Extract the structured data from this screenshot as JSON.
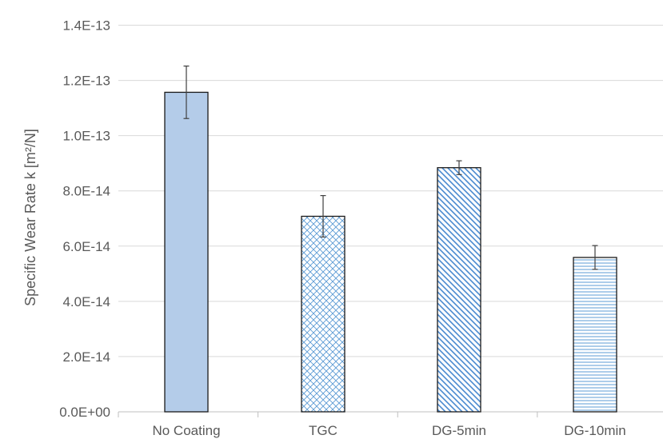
{
  "chart_data": {
    "type": "bar",
    "title": "",
    "xlabel": "",
    "ylabel": "Specific Wear Rate k [m²/N]",
    "categories": [
      "No Coating",
      "TGC",
      "DG-5min",
      "DG-10min"
    ],
    "values": [
      1.157e-13,
      7.08e-14,
      8.84e-14,
      5.59e-14
    ],
    "error_bars": [
      9.5e-15,
      7.5e-15,
      2.5e-15,
      4.3e-15
    ],
    "ylim": [
      0,
      1.4e-13
    ],
    "yticks": [
      0,
      2e-14,
      4e-14,
      6e-14,
      8e-14,
      1e-13,
      1.2e-13,
      1.4e-13
    ],
    "ytick_labels": [
      "0.0E+00",
      "2.0E-14",
      "4.0E-14",
      "6.0E-14",
      "8.0E-14",
      "1.0E-13",
      "1.2E-13",
      "1.4E-13"
    ],
    "grid": true,
    "bar_fills": [
      "solid",
      "crosshatch",
      "diagonal",
      "horizontal"
    ],
    "colors": {
      "bar_fill": "#b4cce9",
      "pattern": "#5b9bd5",
      "bar_edge": "#1a1a1a",
      "gridline": "#d9d9d9",
      "axis": "#bfbfbf",
      "error_bar": "#404040",
      "text": "#595959"
    }
  }
}
